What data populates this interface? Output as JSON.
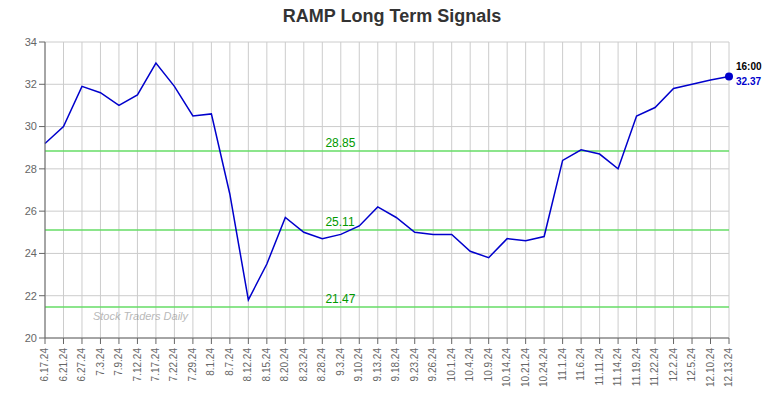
{
  "chart_data": {
    "type": "line",
    "title": "RAMP Long Term Signals",
    "watermark": "Stock Traders Daily",
    "categories": [
      "6.17.24",
      "6.21.24",
      "6.27.24",
      "7.3.24",
      "7.9.24",
      "7.12.24",
      "7.17.24",
      "7.22.24",
      "7.29.24",
      "8.1.24",
      "8.7.24",
      "8.12.24",
      "8.15.24",
      "8.20.24",
      "8.23.24",
      "8.28.24",
      "9.3.24",
      "9.10.24",
      "9.13.24",
      "9.18.24",
      "9.23.24",
      "9.26.24",
      "10.1.24",
      "10.4.24",
      "10.9.24",
      "10.14.24",
      "10.21.24",
      "10.24.24",
      "11.1.24",
      "11.6.24",
      "11.11.24",
      "11.14.24",
      "11.19.24",
      "11.22.24",
      "12.2.24",
      "12.5.24",
      "12.10.24",
      "12.13.24"
    ],
    "values": [
      29.2,
      30.0,
      31.9,
      31.6,
      31.0,
      31.5,
      33.0,
      31.9,
      30.5,
      30.6,
      26.8,
      21.8,
      23.5,
      25.7,
      25.0,
      24.7,
      24.9,
      25.3,
      26.2,
      25.7,
      25.0,
      24.9,
      24.9,
      24.1,
      23.8,
      24.7,
      24.6,
      24.8,
      28.4,
      28.9,
      28.7,
      28.0,
      30.5,
      30.9,
      31.8,
      32.0,
      32.2,
      32.37
    ],
    "color": "#0000cc",
    "ylim": [
      20,
      34
    ],
    "yticks": [
      20,
      22,
      24,
      26,
      28,
      30,
      32,
      34
    ],
    "grid": true,
    "reference_lines": [
      {
        "value": 28.85,
        "label": "28.85"
      },
      {
        "value": 25.11,
        "label": "25.11"
      },
      {
        "value": 21.47,
        "label": "21.47"
      }
    ],
    "reference_line_color": "#66dd66",
    "reference_label_color": "#009900",
    "last_point": {
      "label": "16:00",
      "value": 32.37,
      "value_label": "32.37"
    }
  }
}
